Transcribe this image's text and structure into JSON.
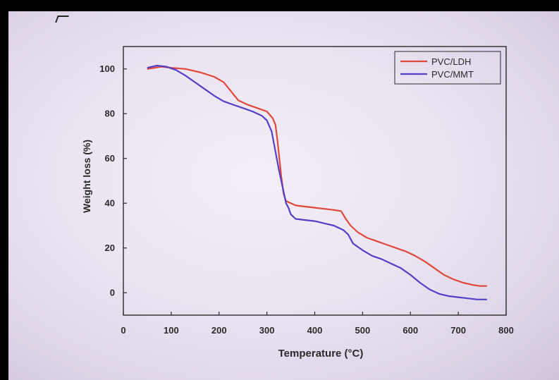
{
  "chart_data": {
    "type": "line",
    "title": "",
    "xlabel": "Temperature (°C)",
    "xlabel_prefix": "Temperature (",
    "xlabel_unit": "°C)",
    "ylabel": "Weight loss (%)",
    "xlim": [
      0,
      800
    ],
    "ylim": [
      -10,
      110
    ],
    "xticks": [
      0,
      100,
      200,
      300,
      400,
      500,
      600,
      700,
      800
    ],
    "yticks": [
      0,
      20,
      40,
      60,
      80,
      100
    ],
    "grid": false,
    "legend_position": "top-right",
    "series": [
      {
        "name": "PVC/LDH",
        "color": "#e0483c",
        "x": [
          50,
          80,
          100,
          130,
          160,
          190,
          210,
          225,
          240,
          260,
          280,
          300,
          312,
          318,
          322,
          326,
          330,
          335,
          340,
          345,
          350,
          360,
          380,
          400,
          420,
          440,
          455,
          465,
          475,
          490,
          510,
          530,
          550,
          570,
          590,
          610,
          630,
          650,
          670,
          690,
          710,
          730,
          745,
          760
        ],
        "values": [
          100,
          101,
          100.5,
          100,
          98.5,
          96.5,
          94,
          90,
          86,
          84,
          82.5,
          81,
          78,
          75,
          68,
          60,
          52,
          44,
          41,
          40.5,
          40,
          39,
          38.5,
          38,
          37.5,
          37,
          36.5,
          33,
          30,
          27,
          24.5,
          23,
          21.5,
          20,
          18.5,
          16.5,
          14,
          11,
          8,
          6,
          4.5,
          3.5,
          3,
          3
        ]
      },
      {
        "name": "PVC/MMT",
        "color": "#5440c8",
        "x": [
          50,
          70,
          90,
          110,
          130,
          150,
          170,
          190,
          210,
          230,
          250,
          270,
          290,
          300,
          310,
          318,
          325,
          330,
          335,
          340,
          345,
          350,
          360,
          380,
          400,
          420,
          440,
          460,
          470,
          480,
          500,
          520,
          540,
          560,
          580,
          600,
          620,
          640,
          660,
          680,
          700,
          720,
          740,
          760
        ],
        "values": [
          100.5,
          101.5,
          101,
          99.5,
          97,
          94,
          91,
          88,
          85.5,
          84,
          82.5,
          81,
          79,
          77,
          72,
          63,
          55,
          50,
          45,
          40,
          38,
          35,
          33,
          32.5,
          32,
          31,
          30,
          28,
          26,
          22,
          19,
          16.5,
          15,
          13,
          11,
          8,
          4.5,
          1.5,
          -0.5,
          -1.5,
          -2,
          -2.5,
          -3,
          -3
        ]
      }
    ]
  }
}
